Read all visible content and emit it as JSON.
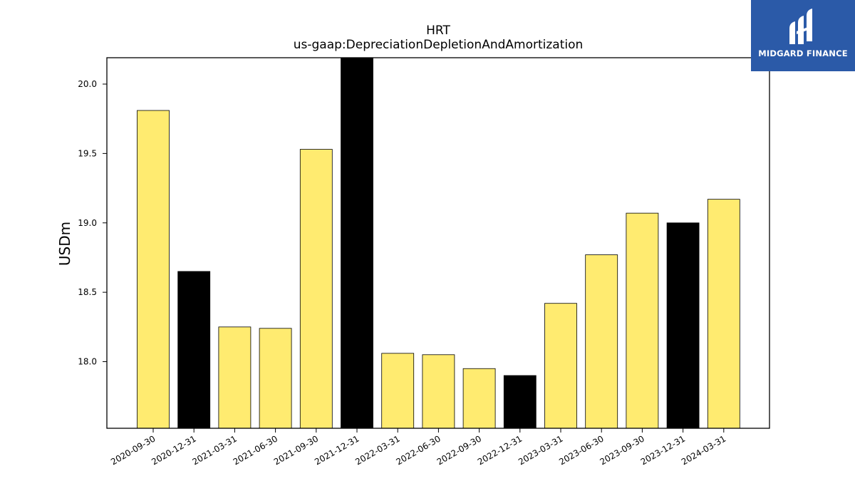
{
  "chart_data": {
    "type": "bar",
    "title": "HRT",
    "subtitle": "us-gaap:DepreciationDepletionAndAmortization",
    "xlabel": "",
    "ylabel": "USDm",
    "ylim": [
      17.52,
      20.19
    ],
    "yticks": [
      "18.0",
      "18.5",
      "19.0",
      "19.5",
      "20.0"
    ],
    "grid": false,
    "categories": [
      "2020-09-30",
      "2020-12-31",
      "2021-03-31",
      "2021-06-30",
      "2021-09-30",
      "2021-12-31",
      "2022-03-31",
      "2022-06-30",
      "2022-09-30",
      "2022-12-31",
      "2023-03-31",
      "2023-06-30",
      "2023-09-30",
      "2023-12-31",
      "2024-03-31"
    ],
    "values": [
      19.81,
      18.65,
      18.25,
      18.24,
      19.53,
      20.2,
      18.06,
      18.05,
      17.95,
      17.9,
      18.42,
      18.77,
      19.07,
      19.0,
      19.17
    ],
    "bar_colors": [
      "#ffeb70",
      "#000000",
      "#ffeb70",
      "#ffeb70",
      "#ffeb70",
      "#000000",
      "#ffeb70",
      "#ffeb70",
      "#ffeb70",
      "#000000",
      "#ffeb70",
      "#ffeb70",
      "#ffeb70",
      "#000000",
      "#ffeb70"
    ]
  },
  "logo": {
    "text": "MIDGARD FINANCE",
    "background": "#2b5aa8"
  }
}
